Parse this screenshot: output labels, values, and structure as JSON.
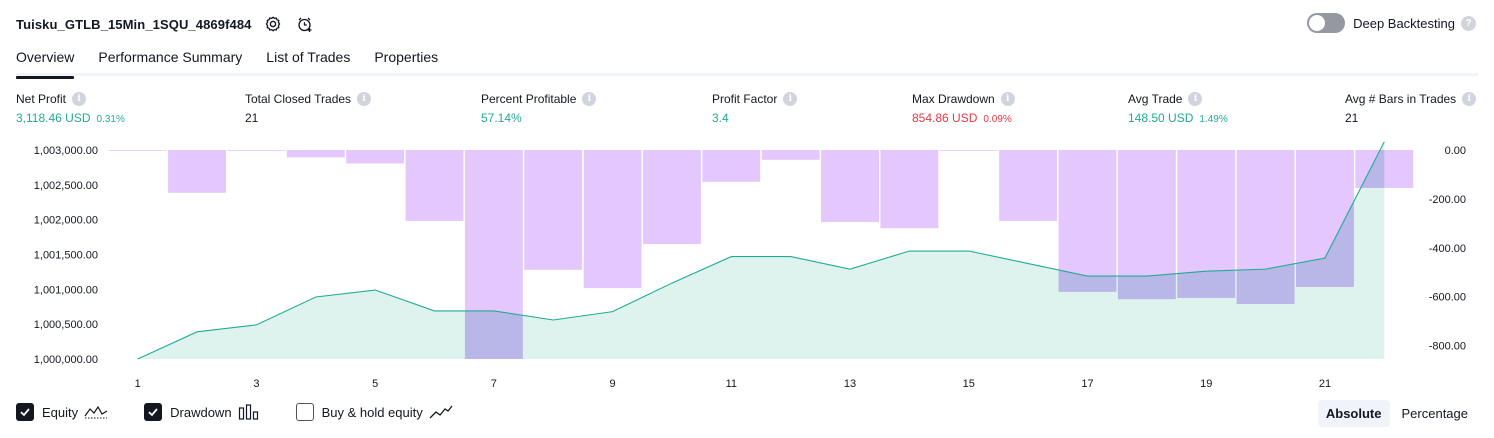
{
  "header": {
    "title": "Tuisku_GTLB_15Min_1SQU_4869f484",
    "deep_backtesting_label": "Deep Backtesting"
  },
  "tabs": [
    {
      "label": "Overview",
      "active": true
    },
    {
      "label": "Performance Summary"
    },
    {
      "label": "List of Trades"
    },
    {
      "label": "Properties"
    }
  ],
  "stats": [
    {
      "label": "Net Profit",
      "value": "3,118.46 USD",
      "pct": "0.31%",
      "tone": "green"
    },
    {
      "label": "Total Closed Trades",
      "value": "21",
      "pct": "",
      "tone": "neutral"
    },
    {
      "label": "Percent Profitable",
      "value": "57.14%",
      "pct": "",
      "tone": "green"
    },
    {
      "label": "Profit Factor",
      "value": "3.4",
      "pct": "",
      "tone": "green"
    },
    {
      "label": "Max Drawdown",
      "value": "854.86 USD",
      "pct": "0.09%",
      "tone": "red"
    },
    {
      "label": "Avg Trade",
      "value": "148.50 USD",
      "pct": "1.49%",
      "tone": "green"
    },
    {
      "label": "Avg # Bars in Trades",
      "value": "21",
      "pct": "",
      "tone": "neutral"
    }
  ],
  "legend": {
    "equity_label": "Equity",
    "drawdown_label": "Drawdown",
    "buyhold_label": "Buy & hold equity",
    "equity_checked": true,
    "drawdown_checked": true,
    "buyhold_checked": false
  },
  "mode": {
    "absolute_label": "Absolute",
    "percentage_label": "Percentage",
    "selected": "Absolute"
  },
  "colors": {
    "equity_line": "#22ab94",
    "equity_fill": "#dff3ee",
    "drawdown_bar": "#e1c4fd",
    "overlap": "#b9b6e8",
    "positive": "#22ab94",
    "negative": "#f23645"
  },
  "chart_data": {
    "type": "area",
    "x": [
      1,
      2,
      3,
      4,
      5,
      6,
      7,
      8,
      9,
      10,
      11,
      12,
      13,
      14,
      15,
      16,
      17,
      18,
      19,
      20,
      21,
      22
    ],
    "x_ticks": [
      "1",
      "3",
      "5",
      "7",
      "9",
      "11",
      "13",
      "15",
      "17",
      "19",
      "21"
    ],
    "series": [
      {
        "axis": "left",
        "type": "area",
        "values": [
          1000000,
          1000390,
          1000490,
          1000890,
          1000990,
          1000690,
          1000690,
          1000560,
          1000680,
          1001090,
          1001470,
          1001470,
          1001290,
          1001550,
          1001550,
          1001370,
          1001190,
          1001190,
          1001260,
          1001290,
          1001450,
          1003118
        ]
      },
      {
        "axis": "right",
        "type": "bar",
        "values": [
          0,
          -175,
          0,
          -30,
          -55,
          -290,
          -855,
          -490,
          -565,
          -385,
          -130,
          -40,
          -295,
          -320,
          0,
          -290,
          -580,
          -610,
          -605,
          -630,
          -560,
          -155
        ]
      }
    ],
    "left_axis": {
      "ticks": [
        "1,003,000.00",
        "1,002,500.00",
        "1,002,000.00",
        "1,001,500.00",
        "1,001,000.00",
        "1,000,500.00",
        "1,000,000.00"
      ],
      "ylim": [
        1000000,
        1003000
      ]
    },
    "right_axis": {
      "ticks": [
        "0.00",
        "-200.00",
        "-400.00",
        "-600.00",
        "-800.00"
      ],
      "ylim": [
        -855,
        0
      ]
    }
  }
}
